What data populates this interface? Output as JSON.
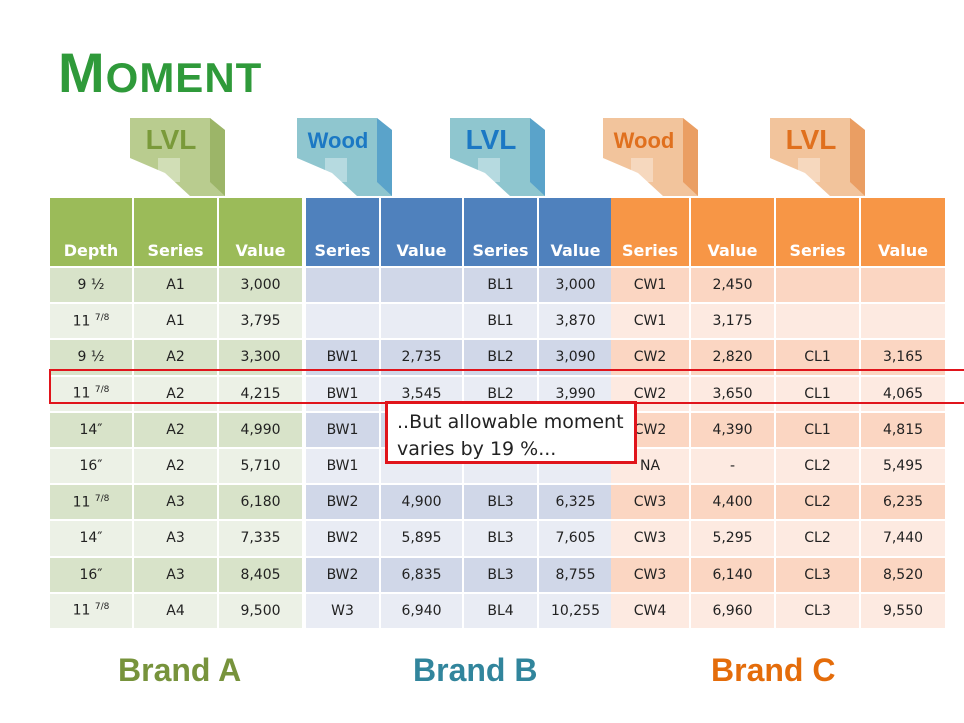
{
  "title": {
    "first": "M",
    "rest": "OMENT"
  },
  "beams": [
    {
      "label": "LVL",
      "color": "#7a9a3a",
      "fill": "#b9cc8f"
    },
    {
      "label": "Wood",
      "color": "#1b78c4",
      "fill": "#8fc6cf"
    },
    {
      "label": "LVL",
      "color": "#1b78c4",
      "fill": "#8fc6cf"
    },
    {
      "label": "Wood",
      "color": "#e0701e",
      "fill": "#f2c49c"
    },
    {
      "label": "LVL",
      "color": "#e0701e",
      "fill": "#f2c49c"
    }
  ],
  "brand_a": {
    "name": "Brand A",
    "headers": [
      "Depth",
      "Series",
      "Value"
    ],
    "rows": [
      [
        "9 ½",
        "A1",
        "3,000"
      ],
      [
        "11 7/8",
        "A1",
        "3,795"
      ],
      [
        "9 ½",
        "A2",
        "3,300"
      ],
      [
        "11 7/8",
        "A2",
        "4,215"
      ],
      [
        "14″",
        "A2",
        "4,990"
      ],
      [
        "16″",
        "A2",
        "5,710"
      ],
      [
        "11 7/8",
        "A3",
        "6,180"
      ],
      [
        "14″",
        "A3",
        "7,335"
      ],
      [
        "16″",
        "A3",
        "8,405"
      ],
      [
        "11 7/8",
        "A4",
        "9,500"
      ]
    ]
  },
  "brand_b": {
    "name": "Brand B",
    "headers": [
      "Series",
      "Value",
      "Series",
      "Value"
    ],
    "rows": [
      [
        "",
        "",
        "BL1",
        "3,000"
      ],
      [
        "",
        "",
        "BL1",
        "3,870"
      ],
      [
        "BW1",
        "2,735",
        "BL2",
        "3,090"
      ],
      [
        "BW1",
        "3,545",
        "BL2",
        "3,990"
      ],
      [
        "BW1",
        "",
        "",
        ""
      ],
      [
        "BW1",
        "",
        "",
        ""
      ],
      [
        "BW2",
        "4,900",
        "BL3",
        "6,325"
      ],
      [
        "BW2",
        "5,895",
        "BL3",
        "7,605"
      ],
      [
        "BW2",
        "6,835",
        "BL3",
        "8,755"
      ],
      [
        "W3",
        "6,940",
        "BL4",
        "10,255"
      ]
    ]
  },
  "brand_c": {
    "name": "Brand C",
    "headers": [
      "Series",
      "Value",
      "Series",
      "Value"
    ],
    "rows": [
      [
        "CW1",
        "2,450",
        "",
        ""
      ],
      [
        "CW1",
        "3,175",
        "",
        ""
      ],
      [
        "CW2",
        "2,820",
        "CL1",
        "3,165"
      ],
      [
        "CW2",
        "3,650",
        "CL1",
        "4,065"
      ],
      [
        "CW2",
        "4,390",
        "CL1",
        "4,815"
      ],
      [
        "NA",
        "-",
        "CL2",
        "5,495"
      ],
      [
        "CW3",
        "4,400",
        "CL2",
        "6,235"
      ],
      [
        "CW3",
        "5,295",
        "CL2",
        "7,440"
      ],
      [
        "CW3",
        "6,140",
        "CL3",
        "8,520"
      ],
      [
        "CW4",
        "6,960",
        "CL3",
        "9,550"
      ]
    ]
  },
  "callout": {
    "line1": "..But allowable moment",
    "line2": "varies by 19 %..."
  },
  "colors": {
    "brand_a": "#77933c",
    "brand_b": "#31859c",
    "brand_c": "#e46c0a"
  }
}
